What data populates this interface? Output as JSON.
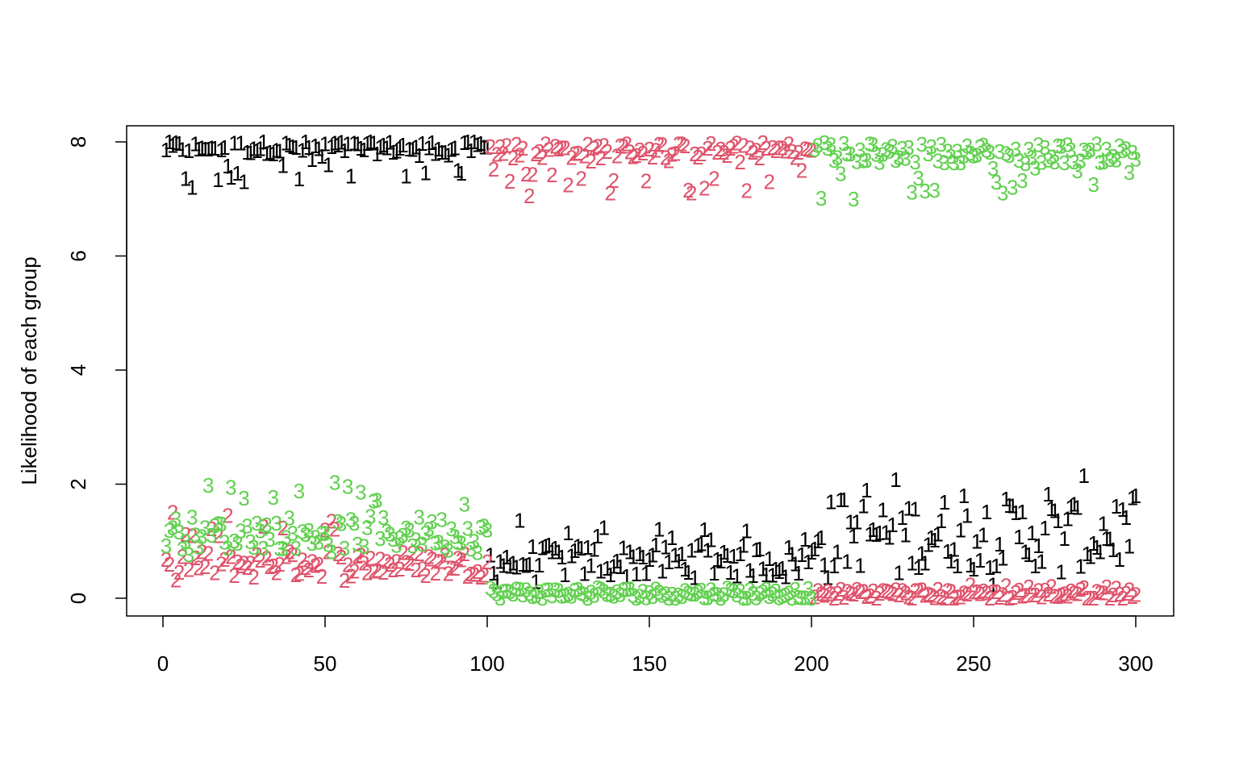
{
  "chart_data": {
    "type": "scatter",
    "title": "",
    "xlabel": "",
    "ylabel": "Likelihood of each group",
    "xlim": [
      0,
      300
    ],
    "ylim": [
      0,
      8
    ],
    "x_ticks": [
      0,
      50,
      100,
      150,
      200,
      250,
      300
    ],
    "y_ticks": [
      0,
      2,
      4,
      6,
      8
    ],
    "grid": false,
    "legend": "none",
    "n_points": 300,
    "series": [
      {
        "marker": "1",
        "color": "#000000",
        "segments": [
          {
            "x_range": [
              1,
              100
            ],
            "typical": 7.9,
            "range": [
              7.2,
              8.0
            ],
            "low_outliers": [
              7.2,
              7.3,
              7.35,
              7.4,
              7.4,
              7.5
            ]
          },
          {
            "x_range": [
              101,
              200
            ],
            "typical": 0.65,
            "range": [
              0.25,
              1.45
            ]
          },
          {
            "x_range": [
              201,
              300
            ],
            "typical": 1.15,
            "range": [
              0.2,
              2.15
            ]
          }
        ]
      },
      {
        "marker": "2",
        "color": "#DF536B",
        "segments": [
          {
            "x_range": [
              1,
              100
            ],
            "typical": 0.6,
            "range": [
              0.3,
              1.55
            ]
          },
          {
            "x_range": [
              101,
              200
            ],
            "typical": 7.85,
            "range": [
              7.05,
              8.0
            ],
            "low_outliers": [
              7.05,
              7.1,
              7.15,
              7.3
            ]
          },
          {
            "x_range": [
              201,
              300
            ],
            "typical": 0.07,
            "range": [
              0.0,
              0.25
            ]
          }
        ]
      },
      {
        "marker": "3",
        "color": "#61D04F",
        "segments": [
          {
            "x_range": [
              1,
              100
            ],
            "typical": 1.15,
            "range": [
              0.75,
              2.05
            ]
          },
          {
            "x_range": [
              101,
              200
            ],
            "typical": 0.08,
            "range": [
              0.0,
              0.2
            ]
          },
          {
            "x_range": [
              201,
              300
            ],
            "typical": 7.8,
            "range": [
              7.0,
              8.0
            ],
            "low_outliers": [
              7.0,
              7.15,
              7.2,
              7.25
            ]
          }
        ]
      }
    ]
  }
}
